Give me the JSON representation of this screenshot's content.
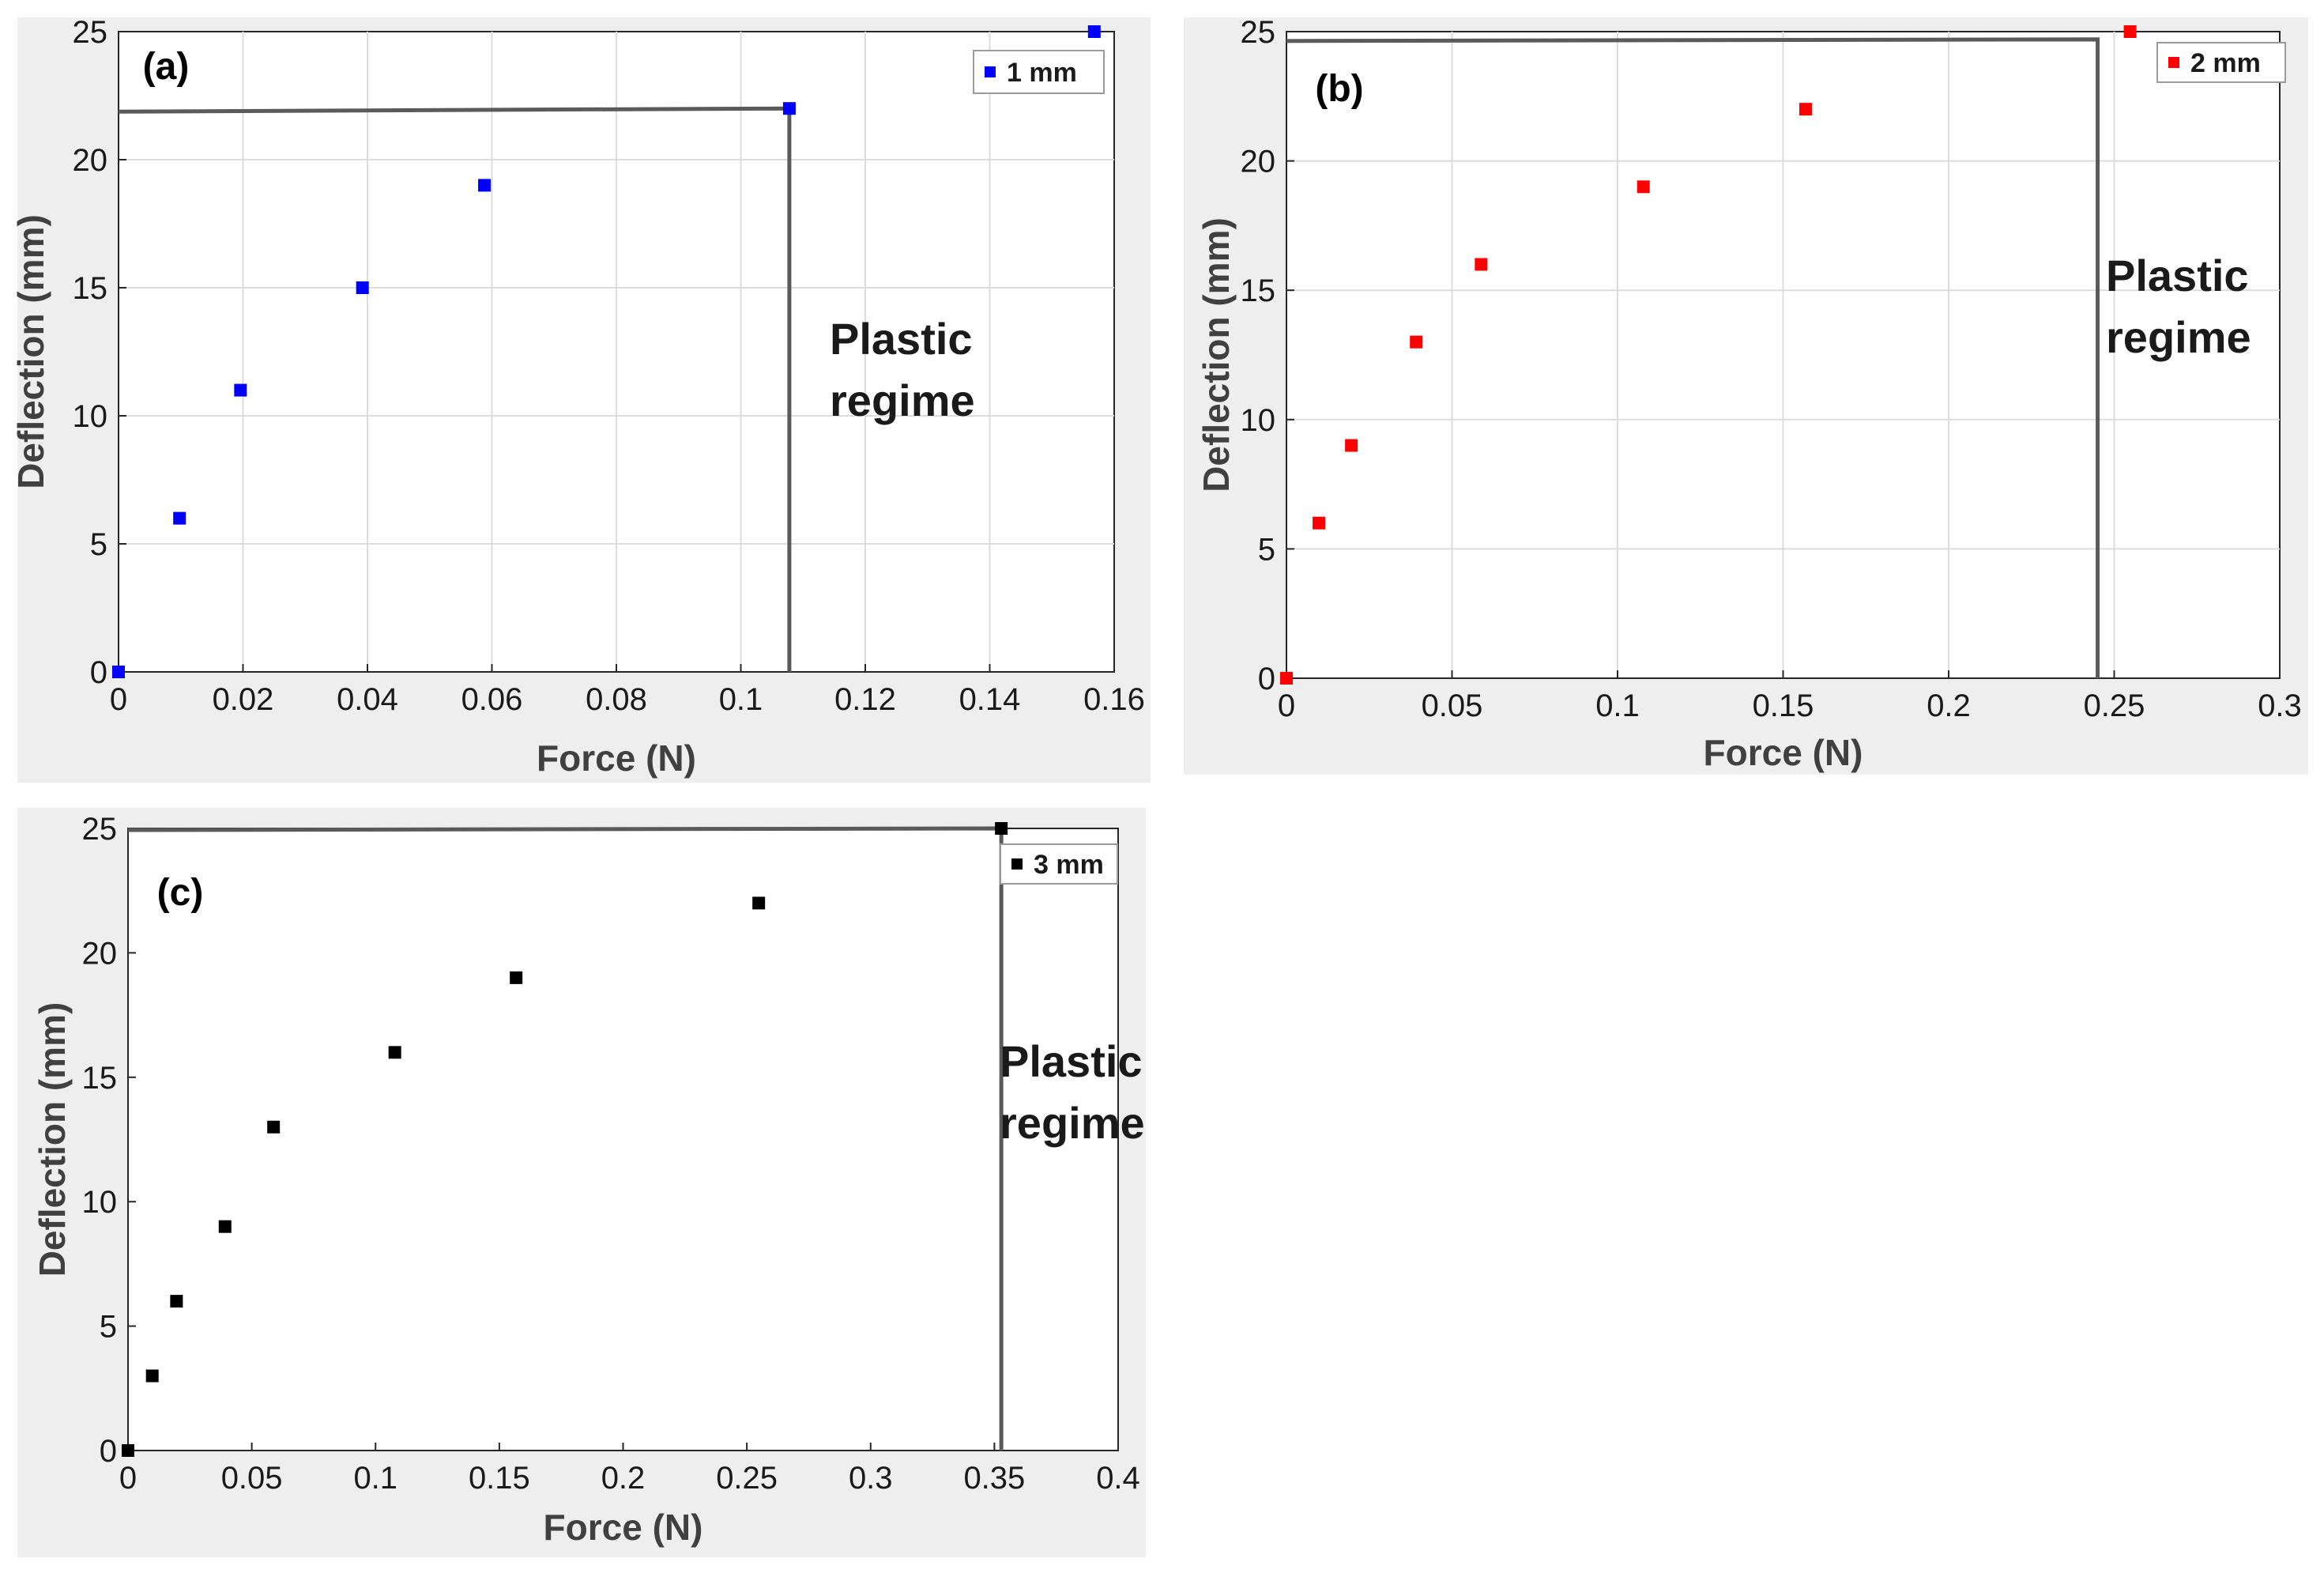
{
  "figure": {
    "description_label": "Force vs deflection plots"
  },
  "chart_data": [
    {
      "type": "scatter",
      "panel_label": "(a)",
      "xlabel": "Force (N)",
      "ylabel": "Deflection (mm)",
      "xlim": [
        0,
        0.16
      ],
      "ylim": [
        0,
        25
      ],
      "xticks": [
        0,
        0.02,
        0.04,
        0.06,
        0.08,
        0.1,
        0.12,
        0.14,
        0.16
      ],
      "xtick_labels": [
        "0",
        "0.02",
        "0.04",
        "0.06",
        "0.08",
        "0.1",
        "0.12",
        "0.14",
        "0.16"
      ],
      "yticks": [
        0,
        5,
        10,
        15,
        20,
        25
      ],
      "ytick_labels": [
        "0",
        "5",
        "10",
        "15",
        "20",
        "25"
      ],
      "grid": true,
      "legend_position": "top-right",
      "series": [
        {
          "name": "1 mm",
          "color": "#0000ff",
          "x": [
            0,
            0.0098,
            0.0196,
            0.0392,
            0.0588,
            0.1078,
            0.1568
          ],
          "y": [
            0,
            6,
            11,
            15,
            19,
            22,
            25
          ]
        }
      ],
      "regime_boundary": {
        "x": 0.1078,
        "y": 22
      },
      "annotation": [
        "Plastic",
        "regime"
      ]
    },
    {
      "type": "scatter",
      "panel_label": "(b)",
      "xlabel": "Force (N)",
      "ylabel": "Deflection (mm)",
      "xlim": [
        0,
        0.3
      ],
      "ylim": [
        0,
        25
      ],
      "xticks": [
        0,
        0.05,
        0.1,
        0.15,
        0.2,
        0.25,
        0.3
      ],
      "xtick_labels": [
        "0",
        "0.05",
        "0.1",
        "0.15",
        "0.2",
        "0.25",
        "0.3"
      ],
      "yticks": [
        0,
        5,
        10,
        15,
        20,
        25
      ],
      "ytick_labels": [
        "0",
        "5",
        "10",
        "15",
        "20",
        "25"
      ],
      "grid": true,
      "legend_position": "top-right",
      "series": [
        {
          "name": "2 mm",
          "color": "#ff0000",
          "x": [
            0,
            0.0098,
            0.0196,
            0.0392,
            0.0588,
            0.1078,
            0.1568,
            0.2548
          ],
          "y": [
            0,
            6,
            9,
            13,
            16,
            19,
            22,
            25
          ]
        }
      ],
      "regime_boundary": {
        "x": 0.245,
        "y": 24.7
      },
      "annotation": [
        "Plastic",
        "regime"
      ]
    },
    {
      "type": "scatter",
      "panel_label": "(c)",
      "xlabel": "Force (N)",
      "ylabel": "Deflection (mm)",
      "xlim": [
        0,
        0.4
      ],
      "ylim": [
        0,
        25
      ],
      "xticks": [
        0,
        0.05,
        0.1,
        0.15,
        0.2,
        0.25,
        0.3,
        0.35,
        0.4
      ],
      "xtick_labels": [
        "0",
        "0.05",
        "0.1",
        "0.15",
        "0.2",
        "0.25",
        "0.3",
        "0.35",
        "0.4"
      ],
      "yticks": [
        0,
        5,
        10,
        15,
        20,
        25
      ],
      "ytick_labels": [
        "0",
        "5",
        "10",
        "15",
        "20",
        "25"
      ],
      "grid": false,
      "legend_position": "top-right",
      "series": [
        {
          "name": "3 mm",
          "color": "#000000",
          "x": [
            0,
            0.0098,
            0.0196,
            0.0392,
            0.0588,
            0.1078,
            0.1568,
            0.2548,
            0.3528
          ],
          "y": [
            0,
            3,
            6,
            9,
            13,
            16,
            19,
            22,
            25
          ]
        }
      ],
      "regime_boundary": {
        "x": 0.3528,
        "y": 25
      },
      "annotation": [
        "Plastic",
        "regime"
      ]
    }
  ]
}
